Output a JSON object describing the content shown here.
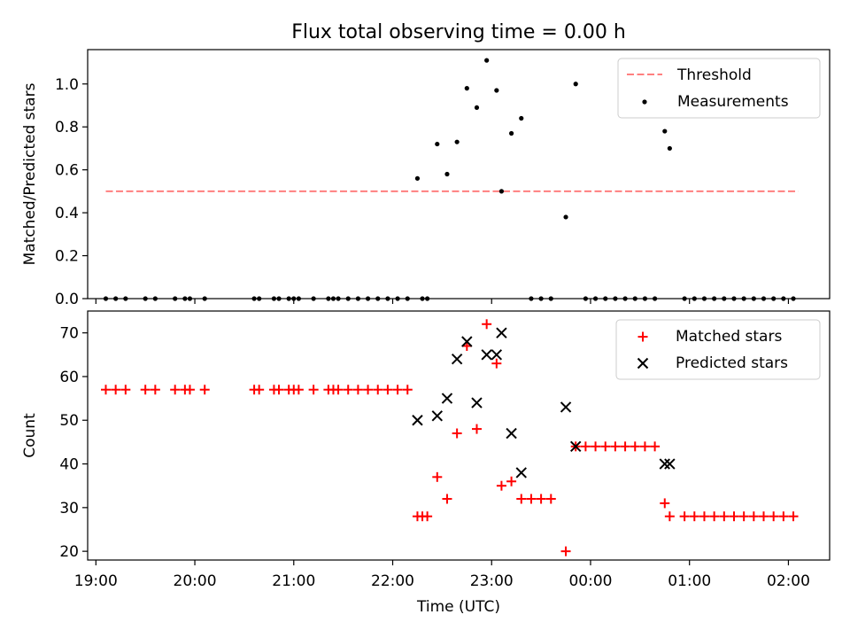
{
  "chart_data": [
    {
      "type": "scatter",
      "title": "Flux total observing time = 0.00 h",
      "ylabel": "Matched/Predicted stars",
      "ylim": [
        0,
        1.16
      ],
      "yticks": [
        "0.0",
        "0.2",
        "0.4",
        "0.6",
        "0.8",
        "1.0"
      ],
      "ytick_values": [
        0,
        0.2,
        0.4,
        0.6,
        0.8,
        1.0
      ],
      "legend": {
        "placement": "top-right",
        "entries": [
          "Threshold",
          "Measurements"
        ]
      },
      "threshold": {
        "name": "Threshold",
        "y": 0.5,
        "x_start": "19:06",
        "x_end": "02:06",
        "color": "#ff7f7f"
      },
      "series": [
        {
          "name": "Measurements",
          "color": "#000000",
          "points": [
            [
              "19:06",
              0
            ],
            [
              "19:12",
              0
            ],
            [
              "19:18",
              0
            ],
            [
              "19:30",
              0
            ],
            [
              "19:36",
              0
            ],
            [
              "19:48",
              0
            ],
            [
              "19:54",
              0
            ],
            [
              "19:57",
              0
            ],
            [
              "20:06",
              0
            ],
            [
              "20:36",
              0
            ],
            [
              "20:39",
              0
            ],
            [
              "20:48",
              0
            ],
            [
              "20:51",
              0
            ],
            [
              "20:57",
              0
            ],
            [
              "21:00",
              0
            ],
            [
              "21:03",
              0
            ],
            [
              "21:12",
              0
            ],
            [
              "21:21",
              0
            ],
            [
              "21:24",
              0
            ],
            [
              "21:27",
              0
            ],
            [
              "21:33",
              0
            ],
            [
              "21:39",
              0
            ],
            [
              "21:45",
              0
            ],
            [
              "21:51",
              0
            ],
            [
              "21:57",
              0
            ],
            [
              "22:03",
              0
            ],
            [
              "22:09",
              0
            ],
            [
              "22:15",
              0.56
            ],
            [
              "22:18",
              0
            ],
            [
              "22:21",
              0
            ],
            [
              "22:27",
              0.72
            ],
            [
              "22:33",
              0.58
            ],
            [
              "22:39",
              0.73
            ],
            [
              "22:45",
              0.98
            ],
            [
              "22:51",
              0.89
            ],
            [
              "22:57",
              1.11
            ],
            [
              "23:03",
              0.97
            ],
            [
              "23:06",
              0.5
            ],
            [
              "23:12",
              0.77
            ],
            [
              "23:18",
              0.84
            ],
            [
              "23:24",
              0
            ],
            [
              "23:30",
              0
            ],
            [
              "23:36",
              0
            ],
            [
              "23:45",
              0.38
            ],
            [
              "23:51",
              1.0
            ],
            [
              "23:57",
              0
            ],
            [
              "00:03",
              0
            ],
            [
              "00:09",
              0
            ],
            [
              "00:15",
              0
            ],
            [
              "00:21",
              0
            ],
            [
              "00:27",
              0
            ],
            [
              "00:33",
              0
            ],
            [
              "00:39",
              0
            ],
            [
              "00:45",
              0.78
            ],
            [
              "00:48",
              0.7
            ],
            [
              "00:57",
              0
            ],
            [
              "01:03",
              0
            ],
            [
              "01:09",
              0
            ],
            [
              "01:15",
              0
            ],
            [
              "01:21",
              0
            ],
            [
              "01:27",
              0
            ],
            [
              "01:33",
              0
            ],
            [
              "01:39",
              0
            ],
            [
              "01:45",
              0
            ],
            [
              "01:51",
              0
            ],
            [
              "01:57",
              0
            ],
            [
              "02:03",
              0
            ]
          ]
        }
      ]
    },
    {
      "type": "scatter",
      "xlabel": "Time (UTC)",
      "ylabel": "Count",
      "ylim": [
        18,
        75
      ],
      "yticks": [
        "20",
        "30",
        "40",
        "50",
        "60",
        "70"
      ],
      "ytick_values": [
        20,
        30,
        40,
        50,
        60,
        70
      ],
      "xlim": [
        "18:55",
        "02:25"
      ],
      "xticks": [
        "19:00",
        "20:00",
        "21:00",
        "22:00",
        "23:00",
        "00:00",
        "01:00",
        "02:00"
      ],
      "legend": {
        "placement": "top-right",
        "entries": [
          "Matched stars",
          "Predicted stars"
        ]
      },
      "series": [
        {
          "name": "Matched stars",
          "marker": "+",
          "color": "#ff0000",
          "points": [
            [
              "19:06",
              57
            ],
            [
              "19:12",
              57
            ],
            [
              "19:18",
              57
            ],
            [
              "19:30",
              57
            ],
            [
              "19:36",
              57
            ],
            [
              "19:48",
              57
            ],
            [
              "19:54",
              57
            ],
            [
              "19:57",
              57
            ],
            [
              "20:06",
              57
            ],
            [
              "20:36",
              57
            ],
            [
              "20:39",
              57
            ],
            [
              "20:48",
              57
            ],
            [
              "20:51",
              57
            ],
            [
              "20:57",
              57
            ],
            [
              "21:00",
              57
            ],
            [
              "21:03",
              57
            ],
            [
              "21:12",
              57
            ],
            [
              "21:21",
              57
            ],
            [
              "21:24",
              57
            ],
            [
              "21:27",
              57
            ],
            [
              "21:33",
              57
            ],
            [
              "21:39",
              57
            ],
            [
              "21:45",
              57
            ],
            [
              "21:51",
              57
            ],
            [
              "21:57",
              57
            ],
            [
              "22:03",
              57
            ],
            [
              "22:09",
              57
            ],
            [
              "22:15",
              28
            ],
            [
              "22:18",
              28
            ],
            [
              "22:21",
              28
            ],
            [
              "22:27",
              37
            ],
            [
              "22:33",
              32
            ],
            [
              "22:39",
              47
            ],
            [
              "22:45",
              67
            ],
            [
              "22:51",
              48
            ],
            [
              "22:57",
              72
            ],
            [
              "23:03",
              63
            ],
            [
              "23:06",
              35
            ],
            [
              "23:12",
              36
            ],
            [
              "23:18",
              32
            ],
            [
              "23:24",
              32
            ],
            [
              "23:30",
              32
            ],
            [
              "23:36",
              32
            ],
            [
              "23:45",
              20
            ],
            [
              "23:51",
              44
            ],
            [
              "23:57",
              44
            ],
            [
              "00:03",
              44
            ],
            [
              "00:09",
              44
            ],
            [
              "00:15",
              44
            ],
            [
              "00:21",
              44
            ],
            [
              "00:27",
              44
            ],
            [
              "00:33",
              44
            ],
            [
              "00:39",
              44
            ],
            [
              "00:45",
              31
            ],
            [
              "00:48",
              28
            ],
            [
              "00:57",
              28
            ],
            [
              "01:03",
              28
            ],
            [
              "01:09",
              28
            ],
            [
              "01:15",
              28
            ],
            [
              "01:21",
              28
            ],
            [
              "01:27",
              28
            ],
            [
              "01:33",
              28
            ],
            [
              "01:39",
              28
            ],
            [
              "01:45",
              28
            ],
            [
              "01:51",
              28
            ],
            [
              "01:57",
              28
            ],
            [
              "02:03",
              28
            ]
          ]
        },
        {
          "name": "Predicted stars",
          "marker": "x",
          "color": "#000000",
          "points": [
            [
              "22:15",
              50
            ],
            [
              "22:27",
              51
            ],
            [
              "22:33",
              55
            ],
            [
              "22:39",
              64
            ],
            [
              "22:45",
              68
            ],
            [
              "22:51",
              54
            ],
            [
              "22:57",
              65
            ],
            [
              "23:03",
              65
            ],
            [
              "23:06",
              70
            ],
            [
              "23:12",
              47
            ],
            [
              "23:18",
              38
            ],
            [
              "23:45",
              53
            ],
            [
              "23:51",
              44
            ],
            [
              "00:45",
              40
            ],
            [
              "00:48",
              40
            ]
          ]
        }
      ]
    }
  ]
}
